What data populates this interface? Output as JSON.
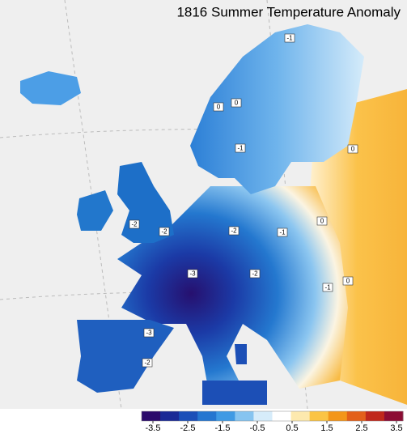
{
  "title": "1816 Summer Temperature Anomaly",
  "contour_labels": [
    -1,
    0,
    0,
    -1,
    0,
    -2,
    -2,
    -2,
    -1,
    0,
    -3,
    -2,
    0,
    -1,
    -3,
    -2
  ],
  "colorbar": {
    "ticks": [
      -3.5,
      -2.5,
      -1.5,
      -0.5,
      0.5,
      1.5,
      2.5,
      3.5
    ],
    "colors": [
      "#2b0b6b",
      "#1b2a96",
      "#1b4fb8",
      "#2576d0",
      "#3f9ae4",
      "#86c4f0",
      "#d6ecfa",
      "#ffffff",
      "#fde9ae",
      "#fbc444",
      "#f3961a",
      "#e3601a",
      "#c0281c",
      "#8c0c34"
    ]
  }
}
